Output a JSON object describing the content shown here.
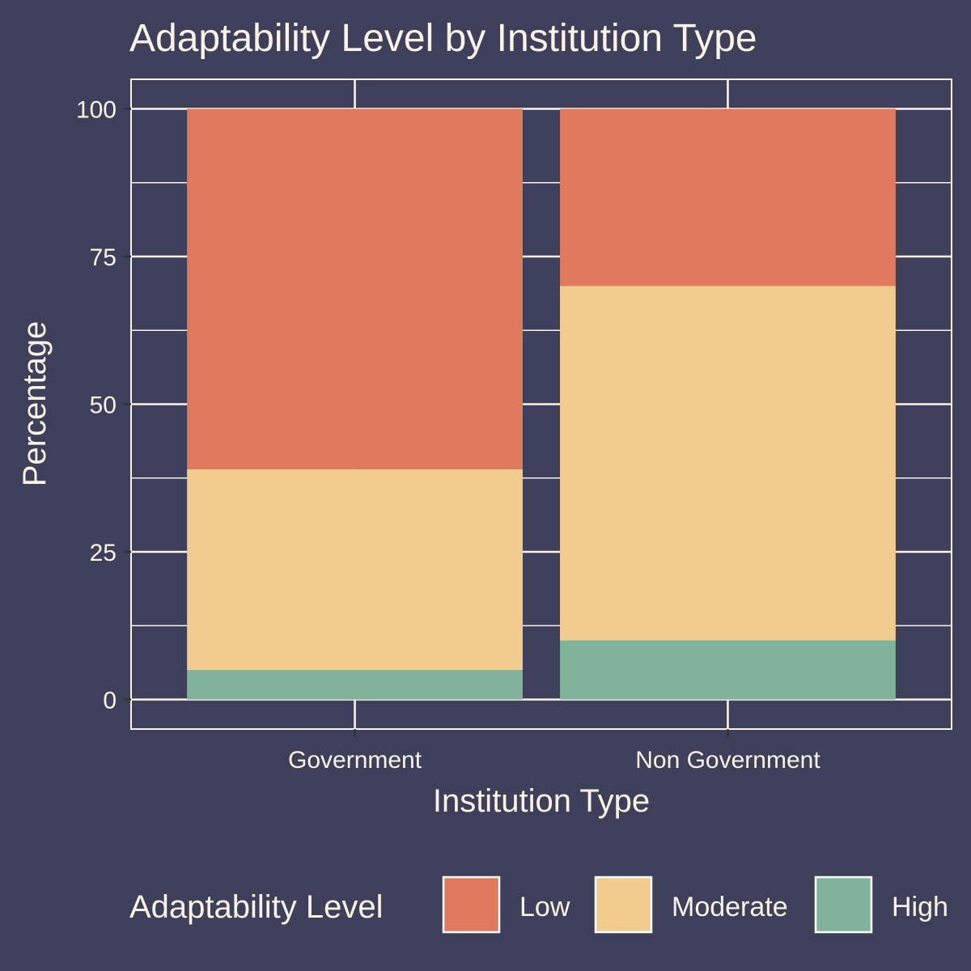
{
  "chart_data": {
    "type": "bar",
    "stacked": true,
    "title": "Adaptability Level by Institution Type",
    "xlabel": "Institution Type",
    "ylabel": "Percentage",
    "categories": [
      "Government",
      "Non Government"
    ],
    "series": [
      {
        "name": "High",
        "values": [
          5,
          10
        ]
      },
      {
        "name": "Moderate",
        "values": [
          34,
          60
        ]
      },
      {
        "name": "Low",
        "values": [
          61,
          30
        ]
      }
    ],
    "ylim": [
      -5,
      105
    ],
    "yticks": [
      0,
      25,
      50,
      75,
      100
    ],
    "grid": true,
    "legend": {
      "title": "Adaptability Level",
      "position": "bottom",
      "entries": [
        "Low",
        "Moderate",
        "High"
      ]
    },
    "colors": {
      "background": "#3D3F5B",
      "text": "#FBF3E4",
      "grid": "#FBF3E4",
      "Low": "#E07A5F",
      "Moderate": "#F2CC8F",
      "High": "#81B29A"
    }
  }
}
